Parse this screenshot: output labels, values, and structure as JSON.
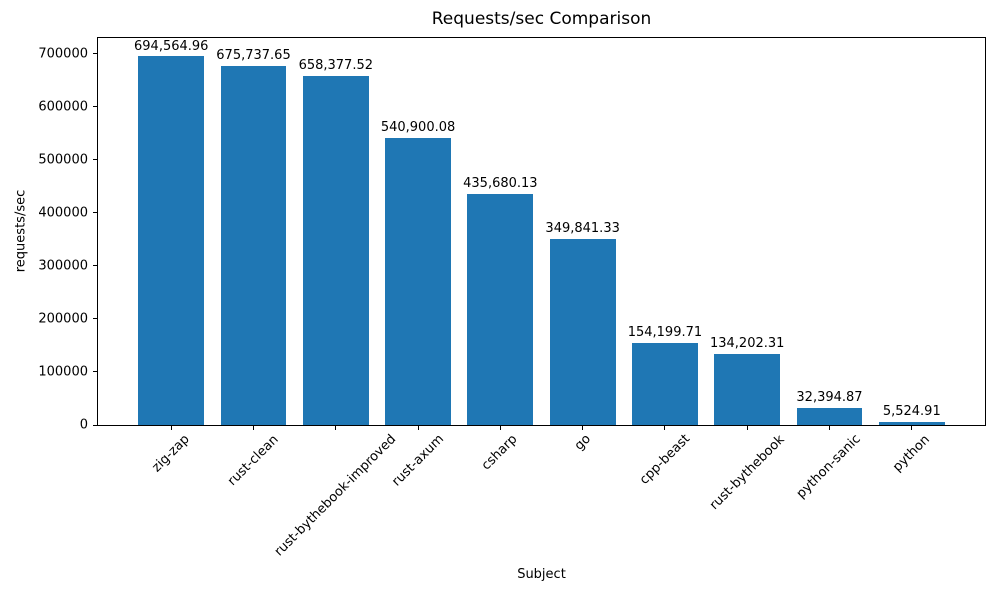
{
  "chart_data": {
    "type": "bar",
    "title": "Requests/sec Comparison",
    "xlabel": "Subject",
    "ylabel": "requests/sec",
    "categories": [
      "zig-zap",
      "rust-clean",
      "rust-bythebook-improved",
      "rust-axum",
      "csharp",
      "go",
      "cpp-beast",
      "rust-bythebook",
      "python-sanic",
      "python"
    ],
    "values": [
      694564.96,
      675737.65,
      658377.52,
      540900.08,
      435680.13,
      349841.33,
      154199.71,
      134202.31,
      32394.87,
      5524.91
    ],
    "value_labels": [
      "694,564.96",
      "675,737.65",
      "658,377.52",
      "540,900.08",
      "435,680.13",
      "349,841.33",
      "154,199.71",
      "134,202.31",
      "32,394.87",
      "5,524.91"
    ],
    "y_ticks": [
      0,
      100000,
      200000,
      300000,
      400000,
      500000,
      600000,
      700000
    ],
    "ylim": [
      0,
      729293
    ],
    "x_tick_rotation": 45,
    "bar_color": "#1f77b4",
    "grid": false
  }
}
